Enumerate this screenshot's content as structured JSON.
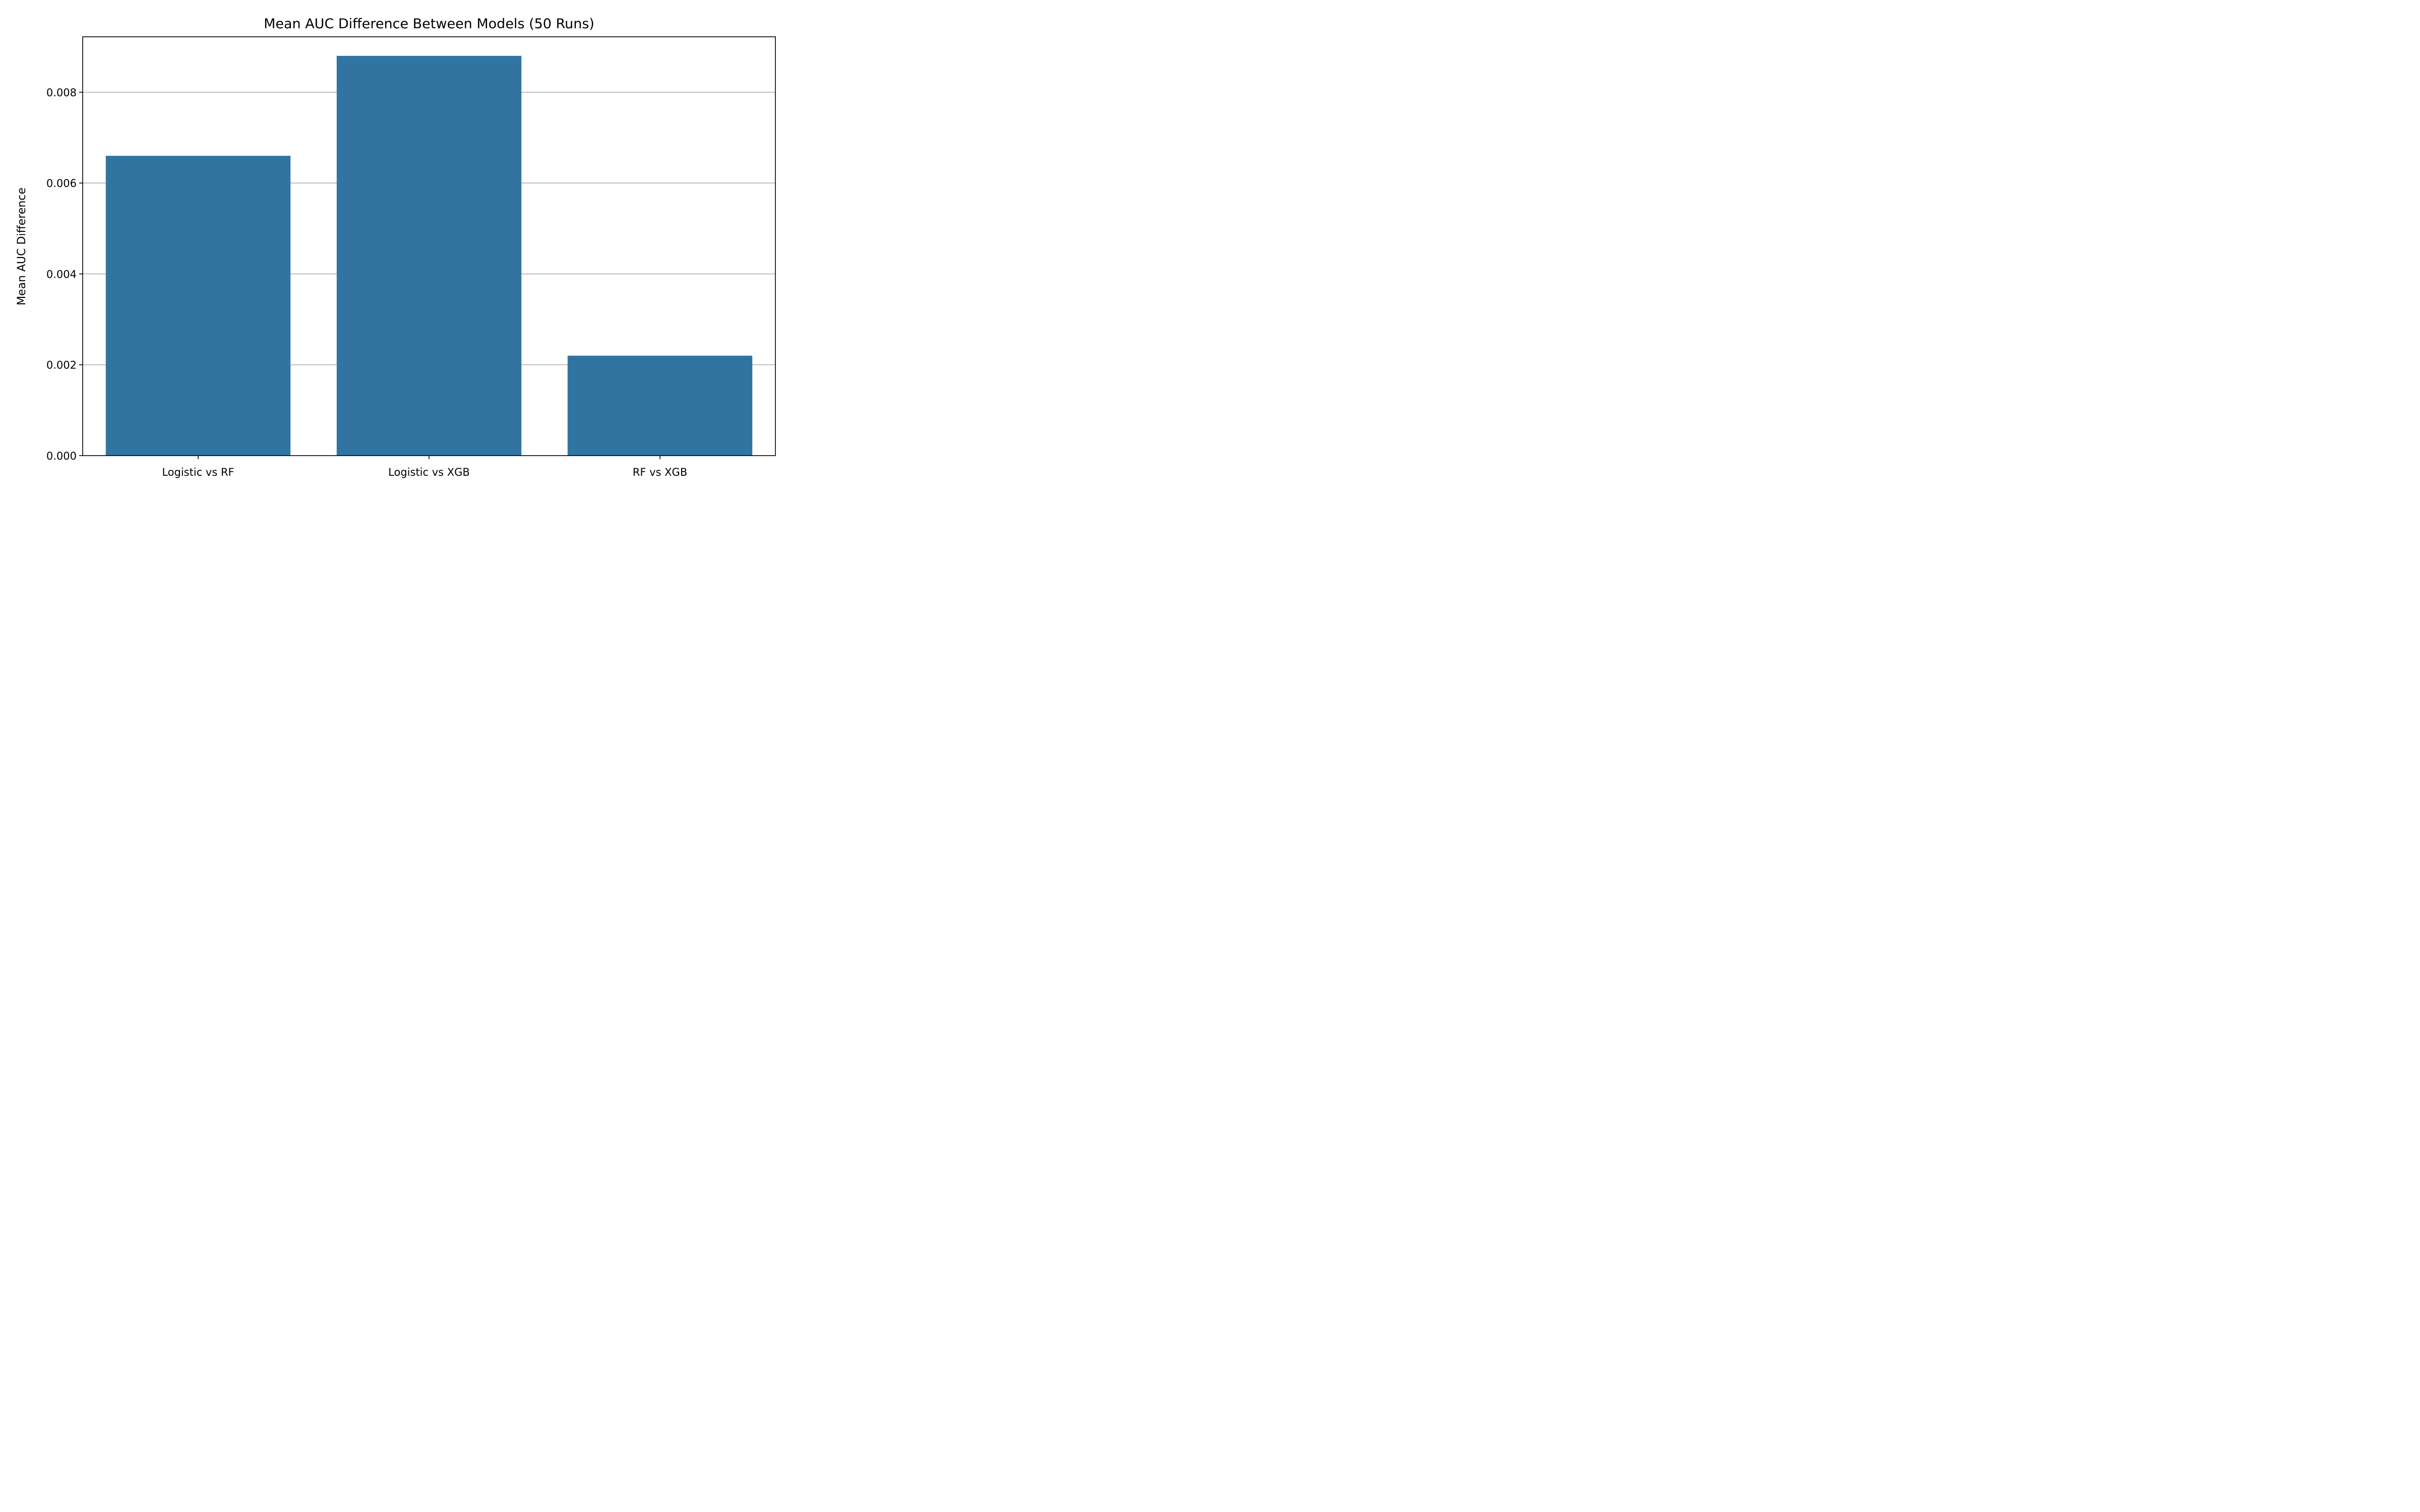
{
  "chart_data": {
    "type": "bar",
    "title": "Mean AUC Difference Between Models (50 Runs)",
    "xlabel": "",
    "ylabel": "Mean AUC Difference",
    "categories": [
      "Logistic vs RF",
      "Logistic vs XGB",
      "RF vs XGB"
    ],
    "values": [
      0.0066,
      0.0088,
      0.0022
    ],
    "ylim": [
      0,
      0.00922
    ],
    "yticks": [
      0.0,
      0.002,
      0.004,
      0.006,
      0.008
    ],
    "ytick_labels": [
      "0.000",
      "0.002",
      "0.004",
      "0.006",
      "0.008"
    ],
    "grid": "y",
    "bar_color": "#3274a1"
  }
}
